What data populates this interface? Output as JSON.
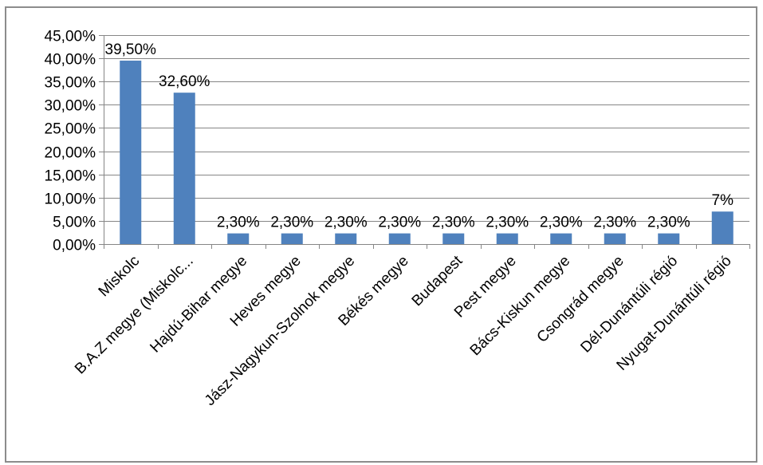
{
  "chart_data": {
    "type": "bar",
    "categories": [
      "Miskolc",
      "B.A.Z megye (Miskolc...",
      "Hajdú-Bihar megye",
      "Heves megye",
      "Jász-Nagykun-Szolnok megye",
      "Békés megye",
      "Budapest",
      "Pest megye",
      "Bács-Kiskun megye",
      "Csongrád megye",
      "Dél-Dunántúli régió",
      "Nyugat-Dunántúli régió"
    ],
    "values": [
      39.5,
      32.6,
      2.3,
      2.3,
      2.3,
      2.3,
      2.3,
      2.3,
      2.3,
      2.3,
      2.3,
      7
    ],
    "data_labels": [
      "39,50%",
      "32,60%",
      "2,30%",
      "2,30%",
      "2,30%",
      "2,30%",
      "2,30%",
      "2,30%",
      "2,30%",
      "2,30%",
      "2,30%",
      "7%"
    ],
    "ylim": [
      0,
      45
    ],
    "yticks": [
      0,
      5,
      10,
      15,
      20,
      25,
      30,
      35,
      40,
      45
    ],
    "ytick_labels": [
      "0,00%",
      "5,00%",
      "10,00%",
      "15,00%",
      "20,00%",
      "25,00%",
      "30,00%",
      "35,00%",
      "40,00%",
      "45,00%"
    ],
    "grid": true,
    "legend": "none",
    "bar_color": "#4f81bd",
    "grid_color": "#868686",
    "axis_color": "#868686"
  }
}
